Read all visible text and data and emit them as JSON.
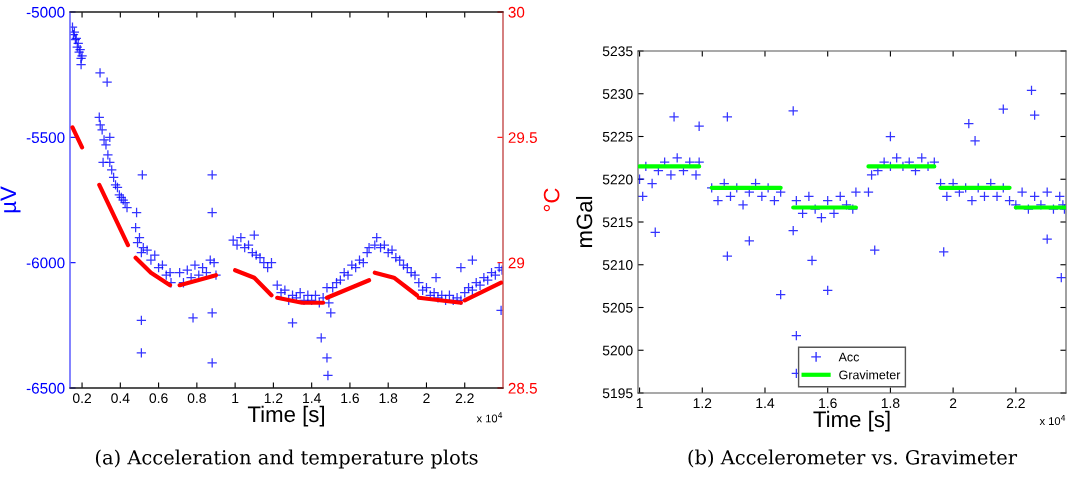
{
  "chart_data": [
    {
      "type": "scatter",
      "xlabel": "Time [s]",
      "ylabel": "µV",
      "y2label": "°C",
      "marker": "cross",
      "grid": false,
      "legend": false,
      "xlim": [
        0.137,
        2.4
      ],
      "ylim": [
        -6500,
        -5000
      ],
      "y2lim": [
        28.5,
        30
      ],
      "xticks": [
        0.2,
        0.4,
        0.6,
        0.8,
        1,
        1.2,
        1.4,
        1.6,
        1.8,
        2,
        2.2
      ],
      "yticks": [
        -6500,
        -6000,
        -5500,
        -5000
      ],
      "y2ticks": [
        28.5,
        29,
        29.5,
        30
      ],
      "annotations": [
        "x 10$^{4}$",
        "(a) Acceleration and temperature plots"
      ],
      "series": [
        {
          "color": "#0000ff",
          "x": [
            0.15,
            0.155,
            0.16,
            0.165,
            0.17,
            0.175,
            0.18,
            0.185,
            0.19,
            0.195,
            0.2,
            0.195,
            0.29,
            0.295,
            0.305,
            0.315,
            0.325,
            0.335,
            0.345,
            0.355,
            0.365,
            0.375,
            0.385,
            0.395,
            0.405,
            0.415,
            0.425,
            0.435,
            0.294,
            0.331,
            0.31,
            0.345,
            0.48,
            0.485,
            0.49,
            0.5,
            0.51,
            0.51,
            0.515,
            0.52,
            0.54,
            0.56,
            0.58,
            0.6,
            0.62,
            0.64,
            0.66,
            0.665,
            0.51,
            0.71,
            0.73,
            0.75,
            0.77,
            0.79,
            0.81,
            0.83,
            0.85,
            0.87,
            0.88,
            0.88,
            0.88,
            0.88,
            0.89,
            0.9,
            0.78,
            0.99,
            1.01,
            1.03,
            1.05,
            1.07,
            1.09,
            1.1,
            1.11,
            1.13,
            1.15,
            1.17,
            1.19,
            1.22,
            1.24,
            1.26,
            1.28,
            1.3,
            1.32,
            1.34,
            1.36,
            1.38,
            1.4,
            1.42,
            1.44,
            1.46,
            1.3,
            1.45,
            1.48,
            1.48,
            1.485,
            1.49,
            1.51,
            1.53,
            1.55,
            1.57,
            1.59,
            1.61,
            1.63,
            1.65,
            1.67,
            1.69,
            1.7,
            1.5,
            1.73,
            1.74,
            1.76,
            1.78,
            1.8,
            1.82,
            1.84,
            1.86,
            1.88,
            1.9,
            1.92,
            1.94,
            1.96,
            1.98,
            2.0,
            2.02,
            2.04,
            2.06,
            2.08,
            2.1,
            2.12,
            2.14,
            2.16,
            2.18,
            2.05,
            2.18,
            2.2,
            2.22,
            2.24,
            2.26,
            2.28,
            2.3,
            2.32,
            2.34,
            2.36,
            2.38,
            2.395,
            2.24,
            2.39
          ],
          "values": [
            -5060,
            -5090,
            -5080,
            -5110,
            -5105,
            -5140,
            -5125,
            -5160,
            -5150,
            -5185,
            -5175,
            -5210,
            -5420,
            -5450,
            -5470,
            -5510,
            -5530,
            -5570,
            -5600,
            -5630,
            -5660,
            -5690,
            -5700,
            -5730,
            -5740,
            -5750,
            -5760,
            -5780,
            -5243,
            -5280,
            -5600,
            -5500,
            -5860,
            -5800,
            -5920,
            -5900,
            -5960,
            -6360,
            -5650,
            -5940,
            -5950,
            -5990,
            -5970,
            -6020,
            -6010,
            -6050,
            -6040,
            -6080,
            -6230,
            -6040,
            -6080,
            -6030,
            -6060,
            -6010,
            -6050,
            -6020,
            -6040,
            -5990,
            -5650,
            -5800,
            -6400,
            -6200,
            -6000,
            -6050,
            -6220,
            -5910,
            -5930,
            -5900,
            -5940,
            -5930,
            -5960,
            -5890,
            -5970,
            -5980,
            -6000,
            -6020,
            -6000,
            -6090,
            -6120,
            -6110,
            -6150,
            -6130,
            -6140,
            -6120,
            -6150,
            -6130,
            -6150,
            -6130,
            -6160,
            -6140,
            -6240,
            -6300,
            -6100,
            -6380,
            -6450,
            -6160,
            -6100,
            -6080,
            -6070,
            -6040,
            -6050,
            -6010,
            -6020,
            -5990,
            -6000,
            -5960,
            -5940,
            -6200,
            -5930,
            -5900,
            -5940,
            -5930,
            -5960,
            -5950,
            -5980,
            -5990,
            -6010,
            -6020,
            -6040,
            -6050,
            -6080,
            -6110,
            -6100,
            -6130,
            -6120,
            -6140,
            -6130,
            -6150,
            -6130,
            -6150,
            -6140,
            -6150,
            -6060,
            -6020,
            -6120,
            -6100,
            -6110,
            -6080,
            -6090,
            -6060,
            -6070,
            -6040,
            -6050,
            -6020,
            -6030,
            -5990,
            -6190
          ]
        },
        {
          "type": "line",
          "axis": "y2",
          "marker": "none",
          "color": "#ff0000",
          "x": [
            0.15,
            0.2,
            0.245,
            0.29,
            0.44,
            0.46,
            0.48,
            0.56,
            0.66,
            0.685,
            0.71,
            0.9,
            0.945,
            1.0,
            1.1,
            1.19,
            1.205,
            1.22,
            1.35,
            1.46,
            1.47,
            1.48,
            1.7,
            1.715,
            1.73,
            1.83,
            1.95,
            1.955,
            1.96,
            2.18,
            2.19,
            2.2,
            2.39
          ],
          "values": [
            29.54,
            29.46,
            null,
            29.31,
            29.07,
            null,
            29.02,
            28.96,
            28.91,
            null,
            28.91,
            28.95,
            null,
            28.97,
            28.94,
            28.87,
            null,
            28.86,
            28.84,
            28.84,
            null,
            28.86,
            28.93,
            null,
            28.96,
            28.94,
            28.87,
            null,
            28.86,
            28.84,
            null,
            28.85,
            28.92
          ]
        }
      ]
    },
    {
      "type": "scatter",
      "xlabel": "Time [s]",
      "ylabel": "mGal",
      "marker": "cross",
      "grid": false,
      "legend": "bottom",
      "xlim": [
        0.995,
        2.36
      ],
      "ylim": [
        5195,
        5235
      ],
      "xticks": [
        1,
        1.2,
        1.4,
        1.6,
        1.8,
        2,
        2.2
      ],
      "yticks": [
        5195,
        5200,
        5205,
        5210,
        5215,
        5220,
        5225,
        5230,
        5235
      ],
      "annotations": [
        "x 10$^{4}$",
        "(b) Accelerometer vs. Gravimeter"
      ],
      "series": [
        {
          "name": "Acc",
          "color": "#0000ff",
          "x": [
            1.0,
            1.02,
            1.04,
            1.06,
            1.08,
            1.1,
            1.12,
            1.14,
            1.16,
            1.18,
            1.19,
            1.11,
            1.05,
            1.19,
            1.01,
            1.23,
            1.25,
            1.27,
            1.29,
            1.31,
            1.33,
            1.35,
            1.37,
            1.39,
            1.41,
            1.43,
            1.45,
            1.28,
            1.45,
            1.28,
            1.35,
            1.49,
            1.5,
            1.52,
            1.54,
            1.56,
            1.58,
            1.6,
            1.62,
            1.64,
            1.66,
            1.68,
            1.69,
            1.5,
            1.5,
            1.49,
            1.55,
            1.6,
            1.73,
            1.74,
            1.76,
            1.78,
            1.8,
            1.82,
            1.84,
            1.86,
            1.88,
            1.9,
            1.92,
            1.94,
            1.75,
            1.8,
            1.96,
            1.98,
            2.0,
            2.02,
            2.04,
            2.06,
            2.08,
            2.1,
            2.12,
            2.14,
            2.16,
            2.18,
            2.16,
            2.05,
            2.07,
            1.97,
            2.2,
            2.22,
            2.24,
            2.26,
            2.28,
            2.3,
            2.32,
            2.34,
            2.35,
            2.355,
            2.25,
            2.26,
            2.345,
            2.3
          ],
          "values": [
            5220,
            5221.5,
            5219.5,
            5221,
            5222,
            5220.5,
            5222.5,
            5221,
            5222,
            5220.5,
            5222,
            5227.3,
            5213.8,
            5226.2,
            5218,
            5219,
            5217.5,
            5219.5,
            5218,
            5219,
            5217,
            5218.5,
            5219.5,
            5218,
            5219,
            5217.5,
            5218.5,
            5211,
            5206.5,
            5227.3,
            5212.8,
            5214,
            5217.5,
            5216,
            5218,
            5216.5,
            5215.5,
            5217.5,
            5216,
            5218,
            5217,
            5216.5,
            5218.5,
            5197.3,
            5201.7,
            5228,
            5210.5,
            5207,
            5218.5,
            5220.5,
            5221,
            5222,
            5221.5,
            5222.5,
            5221.5,
            5222,
            5221,
            5222.5,
            5221.5,
            5222,
            5211.7,
            5225,
            5219.5,
            5218,
            5219.5,
            5218.5,
            5219,
            5217.5,
            5219,
            5218,
            5219.5,
            5218,
            5219,
            5217.5,
            5228.2,
            5226.5,
            5224.5,
            5211.5,
            5217,
            5218.5,
            5216.5,
            5218,
            5217,
            5218.5,
            5216.5,
            5218,
            5217,
            5216.5,
            5230.4,
            5227.5,
            5208.5,
            5213
          ]
        },
        {
          "type": "line",
          "name": "Gravimeter",
          "marker": "none",
          "color": "#00ff00",
          "x": [
            1.0,
            1.19,
            1.21,
            1.23,
            1.45,
            1.47,
            1.49,
            1.69,
            1.71,
            1.73,
            1.94,
            1.95,
            1.96,
            2.18,
            2.19,
            2.2,
            2.36
          ],
          "values": [
            5221.5,
            5221.5,
            null,
            5219,
            5219,
            null,
            5216.7,
            5216.7,
            null,
            5221.5,
            5221.5,
            null,
            5219,
            5219,
            null,
            5216.7,
            5216.7
          ]
        }
      ]
    }
  ]
}
